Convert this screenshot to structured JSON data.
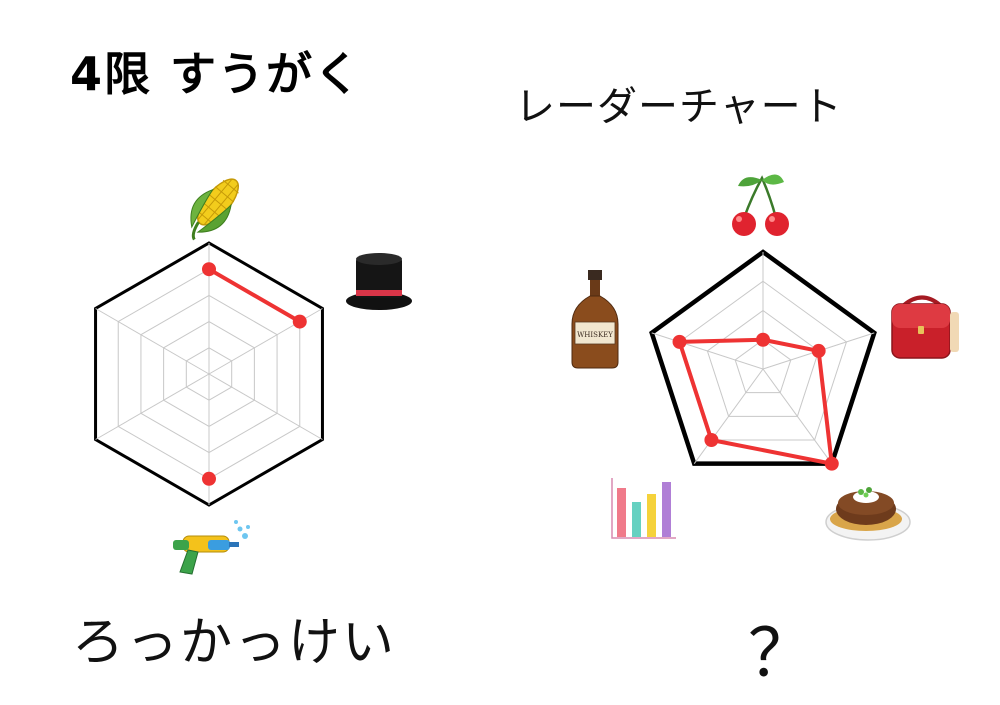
{
  "title": "4限 すうがく",
  "subtitle": "レーダーチャート",
  "left_caption": "ろっかっけい",
  "right_caption": "？",
  "colors": {
    "data_line": "#ee3333",
    "outline": "#000000",
    "grid": "#c8c8c8"
  },
  "chart_data": [
    {
      "type": "radar",
      "shape": "hexagon",
      "levels": 5,
      "max": 5,
      "axes": [
        "corn-icon",
        "top-hat-icon",
        "",
        "water-gun-icon",
        "",
        ""
      ],
      "values": [
        4,
        4,
        null,
        4,
        null,
        null
      ],
      "connections": [
        [
          0,
          1
        ]
      ]
    },
    {
      "type": "radar",
      "shape": "pentagon",
      "levels": 4,
      "max": 4,
      "axes": [
        "cherry-icon",
        "school-bag-icon",
        "hamburg-steak-icon",
        "bar-chart-icon",
        "whiskey-bottle-icon"
      ],
      "values": [
        1,
        2,
        4,
        3,
        3
      ]
    }
  ]
}
